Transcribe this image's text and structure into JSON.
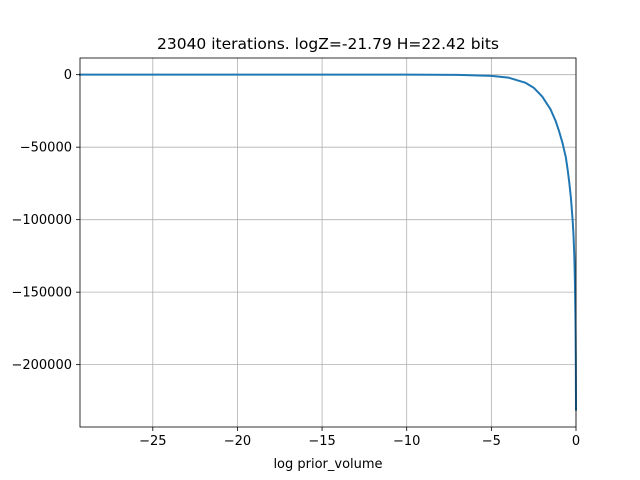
{
  "chart_data": {
    "type": "line",
    "title": "23040 iterations. logZ=-21.79 H=22.42 bits",
    "xlabel": "log prior_volume",
    "ylabel": "",
    "xlim": [
      -29.3,
      0
    ],
    "ylim": [
      -243000,
      11500
    ],
    "grid": true,
    "x_ticks": [
      -25,
      -20,
      -15,
      -10,
      -5,
      0
    ],
    "x_tick_labels": [
      "−25",
      "−20",
      "−15",
      "−10",
      "−5",
      "0"
    ],
    "y_ticks": [
      0,
      -50000,
      -100000,
      -150000,
      -200000
    ],
    "y_tick_labels": [
      "0",
      "−50000",
      "−100000",
      "−150000",
      "−200000"
    ],
    "series": [
      {
        "color": "#1f77b4",
        "x": [
          -29.3,
          -25,
          -20,
          -15,
          -10,
          -7,
          -5,
          -4,
          -3,
          -2.5,
          -2,
          -1.5,
          -1.2,
          -1.0,
          -0.8,
          -0.6,
          -0.5,
          -0.4,
          -0.3,
          -0.2,
          -0.15,
          -0.1,
          -0.06,
          -0.03,
          -0.01,
          0
        ],
        "y": [
          0,
          0,
          0,
          0,
          0,
          -100,
          -800,
          -2000,
          -5500,
          -9000,
          -15000,
          -24000,
          -32000,
          -39000,
          -47000,
          -57000,
          -65000,
          -74000,
          -85000,
          -100000,
          -110000,
          -125000,
          -145000,
          -170000,
          -200000,
          -231000
        ]
      }
    ]
  }
}
